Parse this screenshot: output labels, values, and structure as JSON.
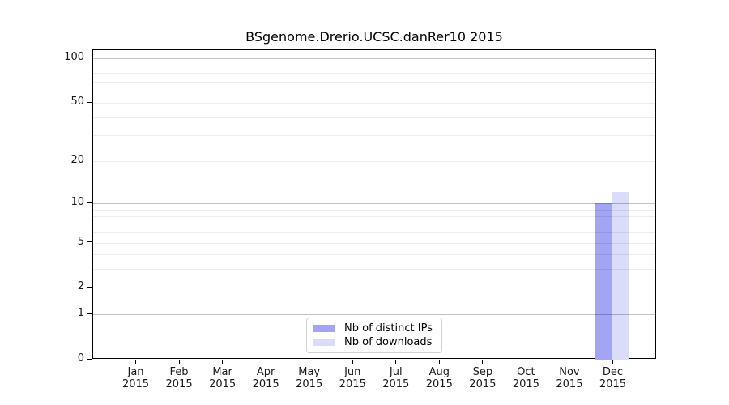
{
  "chart_data": {
    "type": "bar",
    "title": "BSgenome.Drerio.UCSC.danRer10 2015",
    "categories": [
      "Jan",
      "Feb",
      "Mar",
      "Apr",
      "May",
      "Jun",
      "Jul",
      "Aug",
      "Sep",
      "Oct",
      "Nov",
      "Dec"
    ],
    "category_year": "2015",
    "series": [
      {
        "name": "Nb of distinct IPs",
        "color": "#a4a4f4",
        "values": [
          0,
          0,
          0,
          0,
          0,
          0,
          0,
          0,
          0,
          0,
          0,
          10
        ]
      },
      {
        "name": "Nb of downloads",
        "color": "#dbdbfa",
        "values": [
          0,
          0,
          0,
          0,
          0,
          0,
          0,
          0,
          0,
          0,
          0,
          12
        ]
      }
    ],
    "y_axis": {
      "scale": "log1p",
      "tick_labels": [
        "0",
        "1",
        "2",
        "5",
        "10",
        "20",
        "50",
        "100"
      ],
      "tick_values": [
        0,
        1,
        2,
        5,
        10,
        20,
        50,
        100
      ],
      "range": [
        0,
        113
      ]
    },
    "x_axis": {
      "label": ""
    },
    "grid": "horizontal",
    "legend_position": "bottom-center-inside"
  }
}
